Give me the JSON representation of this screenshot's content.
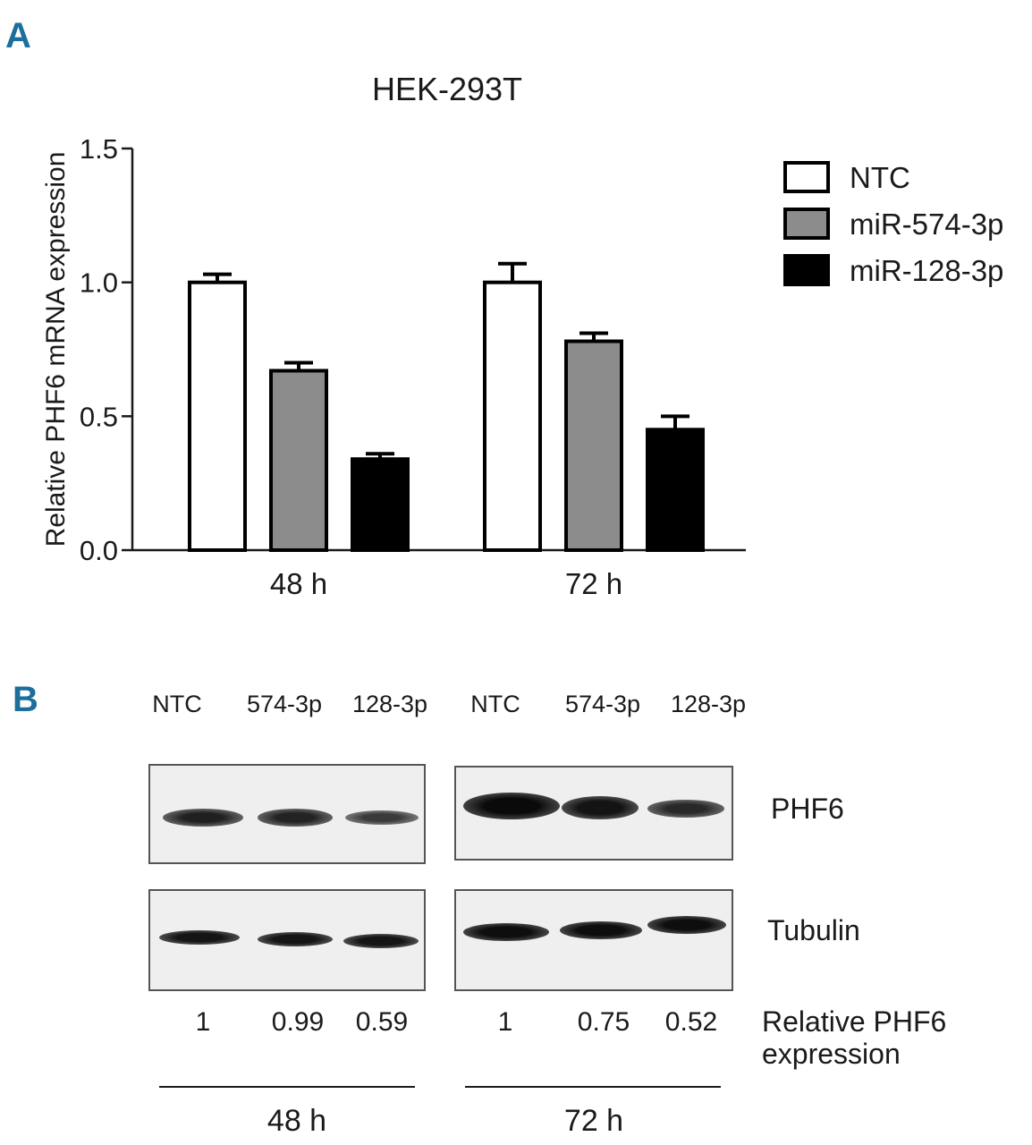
{
  "panel_a": {
    "letter": "A"
  },
  "panel_b": {
    "letter": "B",
    "lane_labels": [
      "NTC",
      "574-3p",
      "128-3p",
      "NTC",
      "574-3p",
      "128-3p"
    ],
    "blot_labels": {
      "top": "PHF6",
      "bottom": "Tubulin"
    },
    "quant_values": [
      "1",
      "0.99",
      "0.59",
      "1",
      "0.75",
      "0.52"
    ],
    "quant_title": [
      "Relative PHF6",
      "expression"
    ],
    "time_labels": [
      "48 h",
      "72 h"
    ]
  },
  "chart_data": {
    "type": "bar",
    "title": "HEK-293T",
    "xlabel": "",
    "ylabel": "Relative PHF6 mRNA expression",
    "ylim": [
      0,
      1.5
    ],
    "yticks": [
      "0.0",
      "0.5",
      "1.0",
      "1.5"
    ],
    "categories": [
      "48 h",
      "72 h"
    ],
    "legend_position": "top-right",
    "grid": false,
    "series": [
      {
        "name": "NTC",
        "color": "#ffffff",
        "values": [
          1.0,
          1.0
        ],
        "errors": [
          0.03,
          0.07
        ]
      },
      {
        "name": "miR-574-3p",
        "color": "#8c8c8c",
        "values": [
          0.67,
          0.78
        ],
        "errors": [
          0.03,
          0.03
        ]
      },
      {
        "name": "miR-128-3p",
        "color": "#000000",
        "values": [
          0.34,
          0.45
        ],
        "errors": [
          0.02,
          0.05
        ]
      }
    ]
  }
}
